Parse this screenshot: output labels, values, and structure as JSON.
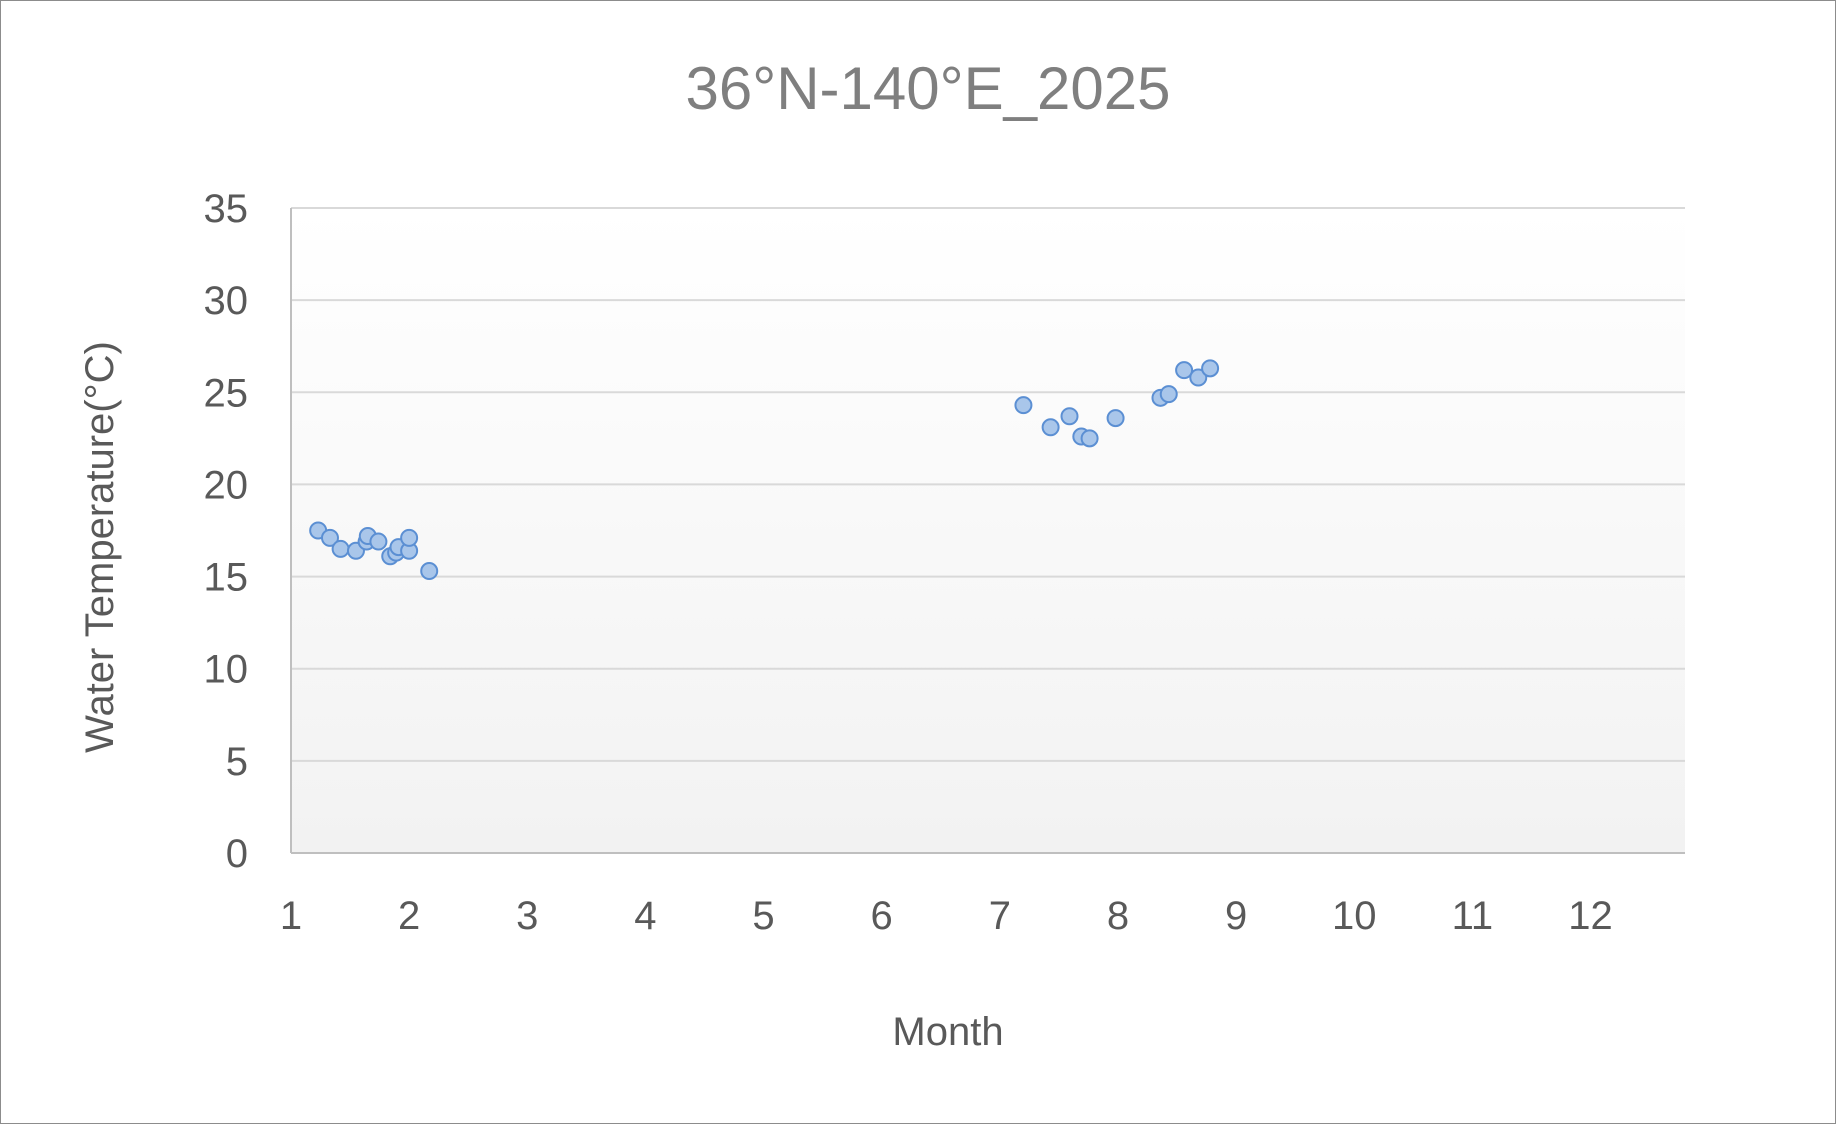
{
  "chart_data": {
    "type": "scatter",
    "title": "36°N-140°E_2025",
    "xlabel": "Month",
    "ylabel": "Water Temperature(°C)",
    "xlim": [
      1,
      12.8
    ],
    "ylim": [
      0,
      35
    ],
    "xticks": [
      1,
      2,
      3,
      4,
      5,
      6,
      7,
      8,
      9,
      10,
      11,
      12
    ],
    "yticks": [
      0,
      5,
      10,
      15,
      20,
      25,
      30,
      35
    ],
    "grid": true,
    "legend": "none",
    "colors": {
      "marker_fill": "#a9c6ea",
      "marker_stroke": "#5b8fd3",
      "gridline": "#d9d9d9",
      "axis": "#bfbfbf",
      "text": "#595959",
      "title": "#7f7f7f",
      "plot_bg_top": "#ffffff",
      "plot_bg_bottom": "#f2f2f2"
    },
    "series": [
      {
        "points": [
          {
            "x": 1.23,
            "y": 17.5
          },
          {
            "x": 1.33,
            "y": 17.1
          },
          {
            "x": 1.42,
            "y": 16.5
          },
          {
            "x": 1.55,
            "y": 16.4
          },
          {
            "x": 1.64,
            "y": 16.9
          },
          {
            "x": 1.65,
            "y": 17.2
          },
          {
            "x": 1.74,
            "y": 16.9
          },
          {
            "x": 1.84,
            "y": 16.1
          },
          {
            "x": 1.89,
            "y": 16.3
          },
          {
            "x": 1.91,
            "y": 16.6
          },
          {
            "x": 2.0,
            "y": 16.4
          },
          {
            "x": 2.0,
            "y": 17.1
          },
          {
            "x": 2.17,
            "y": 15.3
          },
          {
            "x": 7.2,
            "y": 24.3
          },
          {
            "x": 7.43,
            "y": 23.1
          },
          {
            "x": 7.59,
            "y": 23.7
          },
          {
            "x": 7.69,
            "y": 22.6
          },
          {
            "x": 7.76,
            "y": 22.5
          },
          {
            "x": 7.98,
            "y": 23.6
          },
          {
            "x": 8.36,
            "y": 24.7
          },
          {
            "x": 8.43,
            "y": 24.9
          },
          {
            "x": 8.56,
            "y": 26.2
          },
          {
            "x": 8.68,
            "y": 25.8
          },
          {
            "x": 8.78,
            "y": 26.3
          }
        ]
      }
    ]
  }
}
